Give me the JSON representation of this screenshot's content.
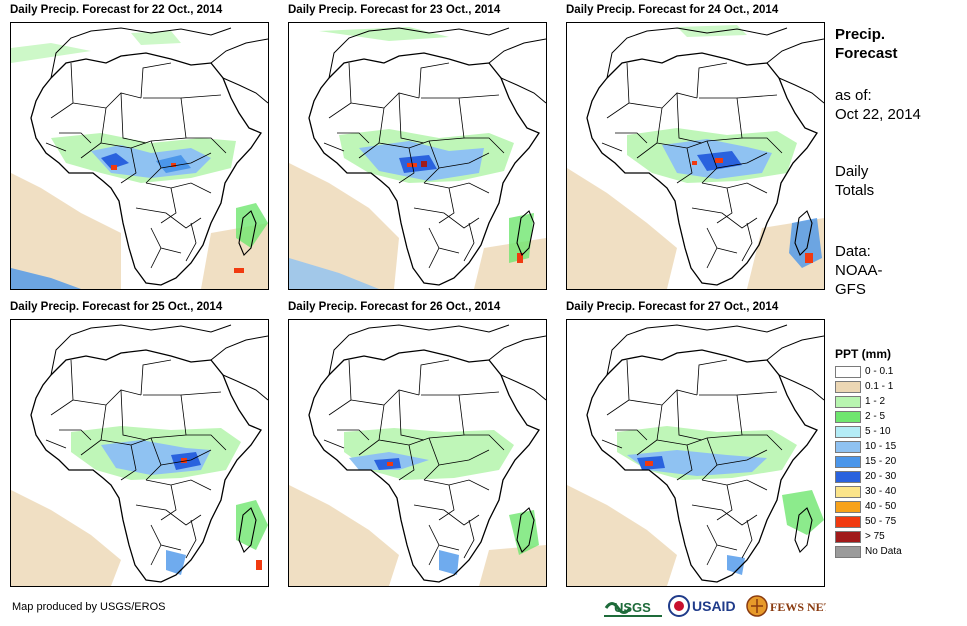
{
  "panels": [
    {
      "title": "Daily Precip. Forecast for 22 Oct., 2014"
    },
    {
      "title": "Daily Precip. Forecast for 23 Oct., 2014"
    },
    {
      "title": "Daily Precip. Forecast for 24 Oct., 2014"
    },
    {
      "title": "Daily Precip. Forecast for 25 Oct., 2014"
    },
    {
      "title": "Daily Precip. Forecast for 26 Oct., 2014"
    },
    {
      "title": "Daily Precip. Forecast for 27 Oct., 2014"
    }
  ],
  "sidebar": {
    "title_line1": "Precip.",
    "title_line2": "Forecast",
    "asof_label": "as of:",
    "asof_date": "Oct 22, 2014",
    "totals_line1": "Daily",
    "totals_line2": "Totals",
    "data_line1": "Data:",
    "data_line2": "NOAA-",
    "data_line3": "GFS"
  },
  "legend": {
    "title": "PPT (mm)",
    "items": [
      {
        "label": "0 - 0.1",
        "color": "#ffffff"
      },
      {
        "label": "0.1 - 1",
        "color": "#ecd7b4"
      },
      {
        "label": "1 - 2",
        "color": "#b8f5b0"
      },
      {
        "label": "2 - 5",
        "color": "#6fe66f"
      },
      {
        "label": "5 - 10",
        "color": "#b4ecf6"
      },
      {
        "label": "10 - 15",
        "color": "#8fc2f2"
      },
      {
        "label": "15 - 20",
        "color": "#4b96ea"
      },
      {
        "label": "20 - 30",
        "color": "#2a62de"
      },
      {
        "label": "30 - 40",
        "color": "#fbe48a"
      },
      {
        "label": "40 - 50",
        "color": "#f7a21a"
      },
      {
        "label": "50 - 75",
        "color": "#f13a10"
      },
      {
        "label": "> 75",
        "color": "#a11a1a"
      },
      {
        "label": "No Data",
        "color": "#9b9b9b"
      }
    ]
  },
  "footer": {
    "credit": "Map produced by USGS/EROS",
    "logos": [
      "USGS",
      "USAID",
      "FEWS NET"
    ]
  }
}
